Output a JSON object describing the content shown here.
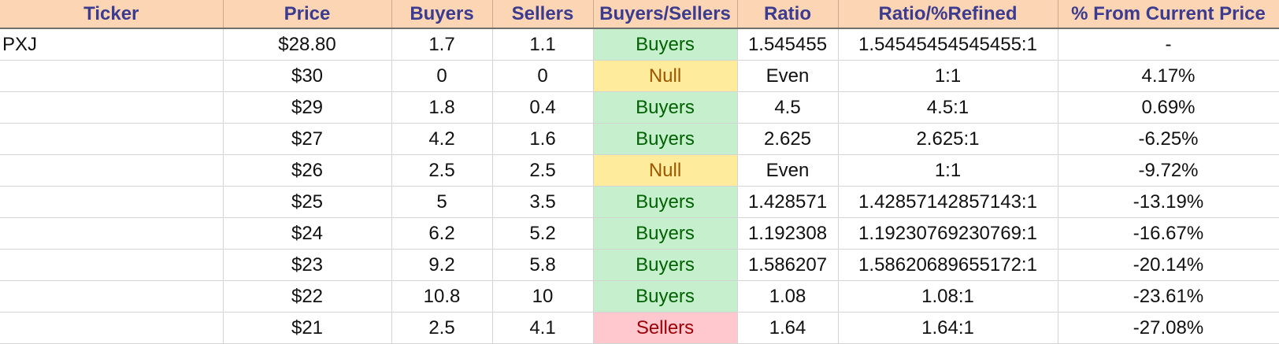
{
  "table": {
    "headers": {
      "ticker": "Ticker",
      "price": "Price",
      "buyers": "Buyers",
      "sellers": "Sellers",
      "buyers_sellers": "Buyers/Sellers",
      "ratio": "Ratio",
      "ratio_refined": "Ratio/%Refined",
      "pct_from_current": "% From Current Price"
    },
    "rows": [
      {
        "ticker": "PXJ",
        "price": "$28.80",
        "buyers": "1.7",
        "sellers": "1.1",
        "buyers_sellers": "Buyers",
        "ratio": "1.545455",
        "ratio_refined": "1.54545454545455:1",
        "pct_from_current": "-"
      },
      {
        "ticker": "",
        "price": "$30",
        "buyers": "0",
        "sellers": "0",
        "buyers_sellers": "Null",
        "ratio": "Even",
        "ratio_refined": "1:1",
        "pct_from_current": "4.17%"
      },
      {
        "ticker": "",
        "price": "$29",
        "buyers": "1.8",
        "sellers": "0.4",
        "buyers_sellers": "Buyers",
        "ratio": "4.5",
        "ratio_refined": "4.5:1",
        "pct_from_current": "0.69%"
      },
      {
        "ticker": "",
        "price": "$27",
        "buyers": "4.2",
        "sellers": "1.6",
        "buyers_sellers": "Buyers",
        "ratio": "2.625",
        "ratio_refined": "2.625:1",
        "pct_from_current": "-6.25%"
      },
      {
        "ticker": "",
        "price": "$26",
        "buyers": "2.5",
        "sellers": "2.5",
        "buyers_sellers": "Null",
        "ratio": "Even",
        "ratio_refined": "1:1",
        "pct_from_current": "-9.72%"
      },
      {
        "ticker": "",
        "price": "$25",
        "buyers": "5",
        "sellers": "3.5",
        "buyers_sellers": "Buyers",
        "ratio": "1.428571",
        "ratio_refined": "1.42857142857143:1",
        "pct_from_current": "-13.19%"
      },
      {
        "ticker": "",
        "price": "$24",
        "buyers": "6.2",
        "sellers": "5.2",
        "buyers_sellers": "Buyers",
        "ratio": "1.192308",
        "ratio_refined": "1.19230769230769:1",
        "pct_from_current": "-16.67%"
      },
      {
        "ticker": "",
        "price": "$23",
        "buyers": "9.2",
        "sellers": "5.8",
        "buyers_sellers": "Buyers",
        "ratio": "1.586207",
        "ratio_refined": "1.58620689655172:1",
        "pct_from_current": "-20.14%"
      },
      {
        "ticker": "",
        "price": "$22",
        "buyers": "10.8",
        "sellers": "10",
        "buyers_sellers": "Buyers",
        "ratio": "1.08",
        "ratio_refined": "1.08:1",
        "pct_from_current": "-23.61%"
      },
      {
        "ticker": "",
        "price": "$21",
        "buyers": "2.5",
        "sellers": "4.1",
        "buyers_sellers": "Sellers",
        "ratio": "1.64",
        "ratio_refined": "1.64:1",
        "pct_from_current": "-27.08%"
      }
    ]
  },
  "colors": {
    "header_bg": "#fcd5b4",
    "header_text": "#3b3b8f",
    "buyers_bg": "#c6efce",
    "buyers_text": "#006100",
    "null_bg": "#ffeb9c",
    "null_text": "#9c5700",
    "sellers_bg": "#ffc7ce",
    "sellers_text": "#9c0006"
  }
}
